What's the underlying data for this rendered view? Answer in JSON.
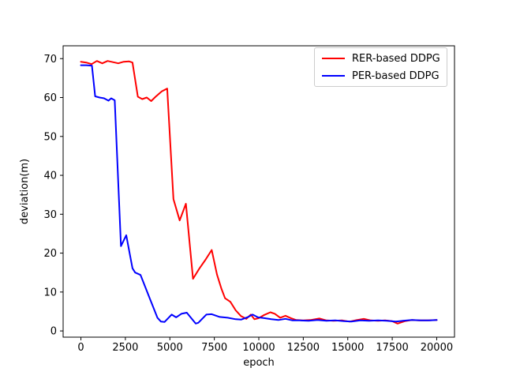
{
  "legend": {
    "items": [
      {
        "label": "RER-based DDPG",
        "color": "#ff0000"
      },
      {
        "label": "PER-based DDPG",
        "color": "#0000ff"
      }
    ]
  },
  "chart_data": {
    "type": "line",
    "title": "",
    "xlabel": "epoch",
    "ylabel": "deviation(m)",
    "xlim": [
      -1000,
      21000
    ],
    "ylim": [
      -1.6,
      73.3
    ],
    "xticks": [
      0,
      2500,
      5000,
      7500,
      10000,
      12500,
      15000,
      17500,
      20000
    ],
    "yticks": [
      0,
      10,
      20,
      30,
      40,
      50,
      60,
      70
    ],
    "grid": false,
    "legend_position": "upper right",
    "series": [
      {
        "name": "RER-based DDPG",
        "color": "#ff0000",
        "points": [
          [
            0,
            69.2
          ],
          [
            300,
            69.0
          ],
          [
            600,
            68.6
          ],
          [
            900,
            69.4
          ],
          [
            1200,
            68.8
          ],
          [
            1500,
            69.4
          ],
          [
            1800,
            69.1
          ],
          [
            2100,
            68.8
          ],
          [
            2400,
            69.2
          ],
          [
            2700,
            69.3
          ],
          [
            2900,
            69.0
          ],
          [
            3200,
            60.2
          ],
          [
            3450,
            59.6
          ],
          [
            3700,
            60.0
          ],
          [
            3950,
            59.1
          ],
          [
            4200,
            60.2
          ],
          [
            4550,
            61.6
          ],
          [
            4850,
            62.3
          ],
          [
            5200,
            33.9
          ],
          [
            5550,
            28.4
          ],
          [
            5900,
            32.7
          ],
          [
            6300,
            13.4
          ],
          [
            6650,
            16.0
          ],
          [
            7000,
            18.3
          ],
          [
            7350,
            20.8
          ],
          [
            7650,
            14.5
          ],
          [
            7900,
            10.8
          ],
          [
            8100,
            8.4
          ],
          [
            8400,
            7.5
          ],
          [
            8700,
            5.3
          ],
          [
            9000,
            3.8
          ],
          [
            9300,
            3.1
          ],
          [
            9550,
            4.2
          ],
          [
            9750,
            3.0
          ],
          [
            10000,
            3.3
          ],
          [
            10300,
            4.1
          ],
          [
            10650,
            4.8
          ],
          [
            10900,
            4.4
          ],
          [
            11200,
            3.4
          ],
          [
            11500,
            3.9
          ],
          [
            11800,
            3.3
          ],
          [
            12100,
            2.8
          ],
          [
            12500,
            2.7
          ],
          [
            12900,
            2.8
          ],
          [
            13400,
            3.2
          ],
          [
            13800,
            2.7
          ],
          [
            14200,
            2.6
          ],
          [
            14700,
            2.7
          ],
          [
            15100,
            2.4
          ],
          [
            15500,
            2.8
          ],
          [
            15900,
            3.1
          ],
          [
            16300,
            2.7
          ],
          [
            16700,
            2.6
          ],
          [
            17100,
            2.7
          ],
          [
            17500,
            2.5
          ],
          [
            17800,
            1.9
          ],
          [
            18200,
            2.5
          ],
          [
            18600,
            2.8
          ],
          [
            19000,
            2.7
          ],
          [
            19500,
            2.7
          ],
          [
            20000,
            2.8
          ]
        ]
      },
      {
        "name": "PER-based DDPG",
        "color": "#0000ff",
        "points": [
          [
            0,
            68.3
          ],
          [
            300,
            68.3
          ],
          [
            620,
            68.2
          ],
          [
            800,
            60.3
          ],
          [
            1050,
            60.0
          ],
          [
            1300,
            59.8
          ],
          [
            1550,
            59.2
          ],
          [
            1700,
            59.8
          ],
          [
            1900,
            59.3
          ],
          [
            2250,
            21.8
          ],
          [
            2550,
            24.6
          ],
          [
            2900,
            16.1
          ],
          [
            3050,
            15.0
          ],
          [
            3350,
            14.4
          ],
          [
            3900,
            8.0
          ],
          [
            4300,
            3.4
          ],
          [
            4500,
            2.4
          ],
          [
            4700,
            2.3
          ],
          [
            5100,
            4.2
          ],
          [
            5350,
            3.5
          ],
          [
            5650,
            4.4
          ],
          [
            5950,
            4.7
          ],
          [
            6450,
            1.9
          ],
          [
            6600,
            2.1
          ],
          [
            7050,
            4.2
          ],
          [
            7350,
            4.3
          ],
          [
            7800,
            3.6
          ],
          [
            8250,
            3.4
          ],
          [
            8700,
            3.0
          ],
          [
            9000,
            2.9
          ],
          [
            9400,
            3.6
          ],
          [
            9650,
            4.2
          ],
          [
            9950,
            3.5
          ],
          [
            10300,
            3.3
          ],
          [
            10700,
            3.0
          ],
          [
            11100,
            2.8
          ],
          [
            11500,
            3.1
          ],
          [
            11900,
            2.7
          ],
          [
            12300,
            2.7
          ],
          [
            12800,
            2.6
          ],
          [
            13300,
            2.8
          ],
          [
            13800,
            2.6
          ],
          [
            14300,
            2.7
          ],
          [
            14800,
            2.5
          ],
          [
            15200,
            2.4
          ],
          [
            15700,
            2.7
          ],
          [
            16200,
            2.6
          ],
          [
            16700,
            2.7
          ],
          [
            17200,
            2.6
          ],
          [
            17700,
            2.4
          ],
          [
            18100,
            2.6
          ],
          [
            18600,
            2.8
          ],
          [
            19100,
            2.7
          ],
          [
            19600,
            2.7
          ],
          [
            20000,
            2.8
          ]
        ]
      }
    ]
  }
}
